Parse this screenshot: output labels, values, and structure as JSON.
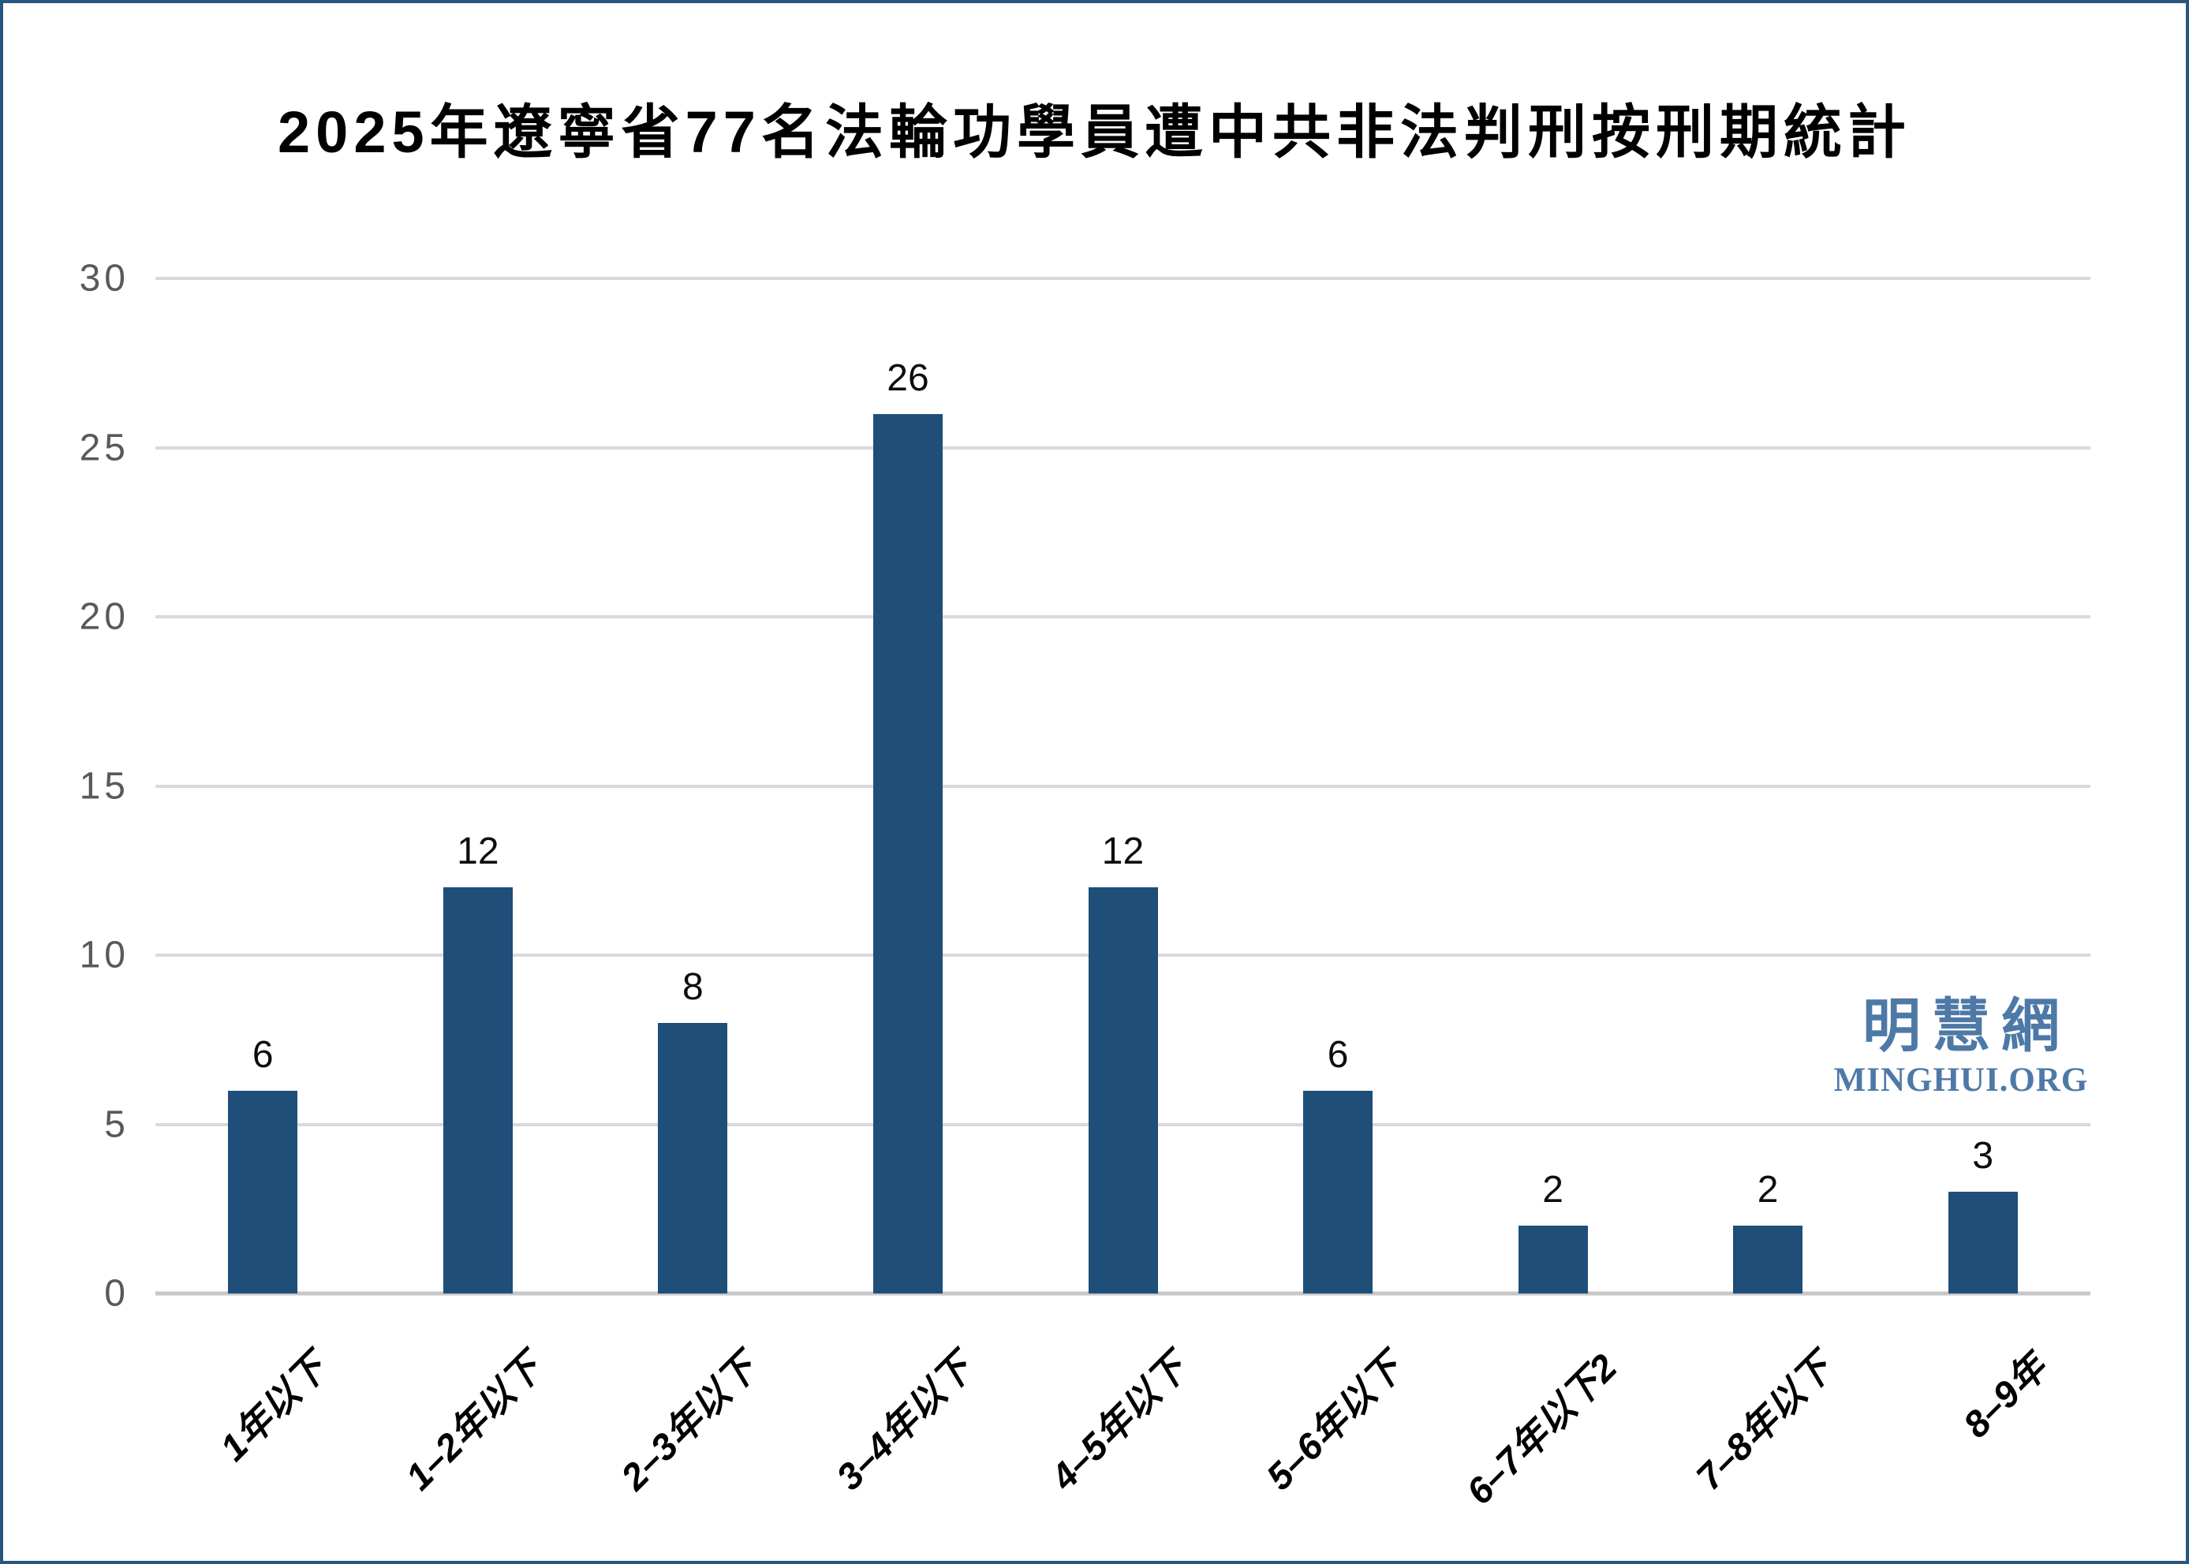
{
  "frame": {
    "border_color": "#28567F",
    "background_color": "#FFFFFF"
  },
  "chart_data": {
    "type": "bar",
    "title": "2025年遼寧省77名法輪功學員遭中共非法判刑按刑期統計",
    "categories": [
      "1年以下",
      "1–2年以下",
      "2–3年以下",
      "3–4年以下",
      "4–5年以下",
      "5–6年以下",
      "6–7年以下2",
      "7–8年以下",
      "8–9年"
    ],
    "values": [
      6,
      12,
      8,
      26,
      12,
      6,
      2,
      2,
      3
    ],
    "value_labels": [
      "6",
      "12",
      "8",
      "26",
      "12",
      "6",
      "2",
      "2",
      "3"
    ],
    "xlabel": "",
    "ylabel": "",
    "yticks": [
      0,
      5,
      10,
      15,
      20,
      25,
      30
    ],
    "ylim": [
      0,
      30
    ],
    "grid": "horizontal-only",
    "legend_position": "none",
    "bar_color": "#1F4E79",
    "gridline_color": "#D9D9D9",
    "baseline_color": "#C7C7C7",
    "ytick_color": "#595959",
    "category_label_rotation_deg": 45
  },
  "watermark": {
    "cjk_text": "明慧網",
    "latin_text": "MINGHUI.ORG",
    "color": "#4E79A7"
  }
}
